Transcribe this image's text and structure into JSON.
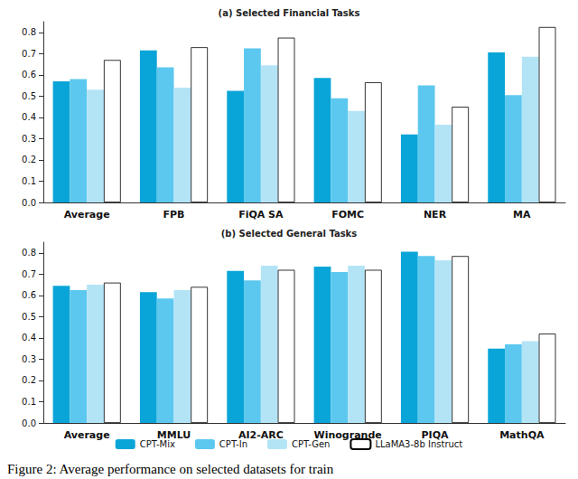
{
  "chart_data": [
    {
      "type": "bar",
      "title": "(a) Selected Financial Tasks",
      "categories": [
        "Average",
        "FPB",
        "FiQA SA",
        "FOMC",
        "NER",
        "MA"
      ],
      "series": [
        {
          "name": "CPT-Mix",
          "color": "#0aa5d8",
          "values": [
            0.57,
            0.715,
            0.525,
            0.585,
            0.32,
            0.705
          ]
        },
        {
          "name": "CPT-In",
          "color": "#5cc8ef",
          "values": [
            0.58,
            0.635,
            0.725,
            0.49,
            0.55,
            0.505
          ]
        },
        {
          "name": "CPT-Gen",
          "color": "#b3e4f6",
          "values": [
            0.53,
            0.54,
            0.645,
            0.43,
            0.365,
            0.685
          ]
        },
        {
          "name": "LLaMA3-8b Instruct",
          "color": "#ffffff",
          "values": [
            0.67,
            0.73,
            0.775,
            0.565,
            0.45,
            0.825
          ]
        }
      ],
      "ylim": [
        0,
        0.85
      ],
      "yticks": [
        {
          "value": 0,
          "label": "0.0"
        },
        0.1,
        0.2,
        0.3,
        0.4,
        0.5,
        0.6,
        0.7,
        0.8
      ],
      "grid": false
    },
    {
      "type": "bar",
      "title": "(b) Selected General Tasks",
      "categories": [
        "Average",
        "MMLU",
        "AI2-ARC",
        "Winogrande",
        "PIQA",
        "MathQA"
      ],
      "series": [
        {
          "name": "CPT-Mix",
          "color": "#0aa5d8",
          "values": [
            0.645,
            0.615,
            0.715,
            0.735,
            0.805,
            0.35
          ]
        },
        {
          "name": "CPT-In",
          "color": "#5cc8ef",
          "values": [
            0.625,
            0.585,
            0.67,
            0.71,
            0.785,
            0.37
          ]
        },
        {
          "name": "CPT-Gen",
          "color": "#b3e4f6",
          "values": [
            0.65,
            0.625,
            0.74,
            0.74,
            0.765,
            0.385
          ]
        },
        {
          "name": "LLaMA3-8b Instruct",
          "color": "#ffffff",
          "values": [
            0.66,
            0.64,
            0.72,
            0.72,
            0.785,
            0.42
          ]
        }
      ],
      "ylim": [
        0,
        0.85
      ],
      "yticks": [
        {
          "value": 0,
          "label": "0.0"
        },
        0.1,
        0.2,
        0.3,
        0.4,
        0.5,
        0.6,
        0.7,
        0.8
      ],
      "grid": false,
      "legend": "bottom"
    }
  ],
  "caption": "Figure 2: Average performance on selected datasets for train"
}
